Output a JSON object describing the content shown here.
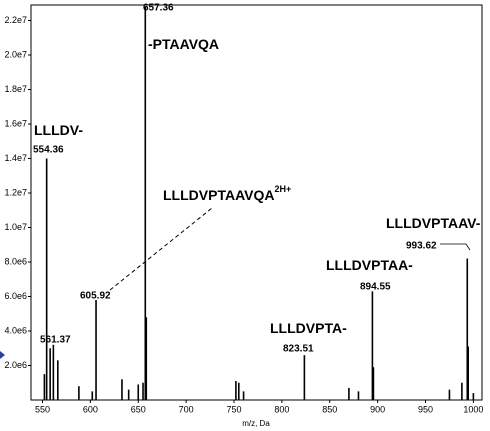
{
  "chart_data": {
    "type": "spectrum",
    "x_label": "m/z, Da",
    "x": [
      554.36,
      561.37,
      605.92,
      657.36,
      823.51,
      894.55,
      993.62
    ],
    "values": [
      14000000,
      3200000,
      5800000,
      22800000,
      2600000,
      6300000,
      8200000
    ],
    "annotations": [
      {
        "text": "LLLDV-"
      },
      {
        "text": "LLLDVPTAAVQA",
        "sup": "2H+"
      },
      {
        "text": "-PTAAVQA"
      },
      {
        "text": "LLLDVPTA-"
      },
      {
        "text": "LLLDVPTAA-"
      },
      {
        "text": "LLLDVPTAAV-"
      }
    ],
    "minor_peaks": {
      "x": [
        552,
        558,
        566,
        588,
        602,
        633,
        640,
        650,
        655,
        658.4,
        752,
        755,
        760,
        870,
        880,
        895.6,
        975,
        988,
        994.6,
        1000
      ],
      "values": [
        1500000,
        3000000,
        2300000,
        800000,
        500000,
        1200000,
        600000,
        900000,
        1000000,
        4800000,
        1100000,
        1000000,
        500000,
        700000,
        500000,
        1900000,
        600000,
        1000000,
        3100000,
        400000
      ]
    },
    "color": "#000000",
    "xlim": [
      538,
      1009
    ],
    "ylim": [
      0,
      22900000
    ],
    "xticks": [
      550,
      600,
      650,
      700,
      750,
      800,
      850,
      900,
      950,
      1000
    ],
    "yticks": [
      {
        "value": 2000000,
        "label": "2.0e6"
      },
      {
        "value": 4000000,
        "label": "4.0e6"
      },
      {
        "value": 6000000,
        "label": "6.0e6"
      },
      {
        "value": 8000000,
        "label": "8.0e6"
      },
      {
        "value": 10000000,
        "label": "1.0e7"
      },
      {
        "value": 12000000,
        "label": "1.2e7"
      },
      {
        "value": 14000000,
        "label": "1.4e7"
      },
      {
        "value": 16000000,
        "label": "1.6e7"
      },
      {
        "value": 18000000,
        "label": "1.8e7"
      },
      {
        "value": 20000000,
        "label": "2.0e7"
      },
      {
        "value": 22000000,
        "label": "2.2e7"
      }
    ]
  }
}
